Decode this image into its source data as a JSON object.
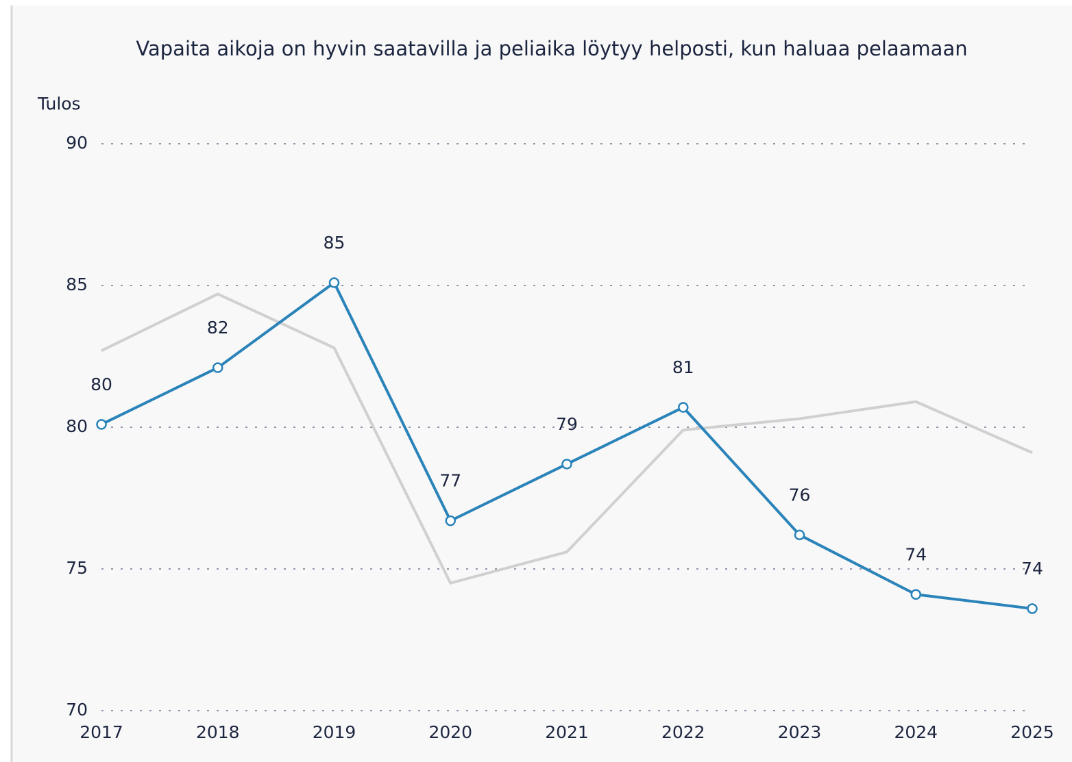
{
  "chart_data": {
    "type": "line",
    "title": "Vapaita aikoja on hyvin saatavilla ja peliaika löytyy helposti, kun haluaa pelaamaan",
    "y_label": "Tulos",
    "categories": [
      "2017",
      "2018",
      "2019",
      "2020",
      "2021",
      "2022",
      "2023",
      "2024",
      "2025"
    ],
    "series": [
      {
        "color": "#d0d0d0",
        "values": [
          82.7,
          84.7,
          82.8,
          74.5,
          75.6,
          79.9,
          80.3,
          80.9,
          79.1
        ]
      },
      {
        "color": "#2a83b9",
        "values": [
          80.1,
          82.1,
          85.1,
          76.7,
          78.7,
          80.7,
          76.2,
          74.1,
          73.6
        ],
        "value_labels": [
          "80",
          "82",
          "85",
          "77",
          "79",
          "81",
          "76",
          "74",
          "74"
        ]
      }
    ],
    "ylim": [
      70,
      90
    ],
    "yticks": [
      70,
      75,
      80,
      85,
      90
    ],
    "grid": true
  }
}
